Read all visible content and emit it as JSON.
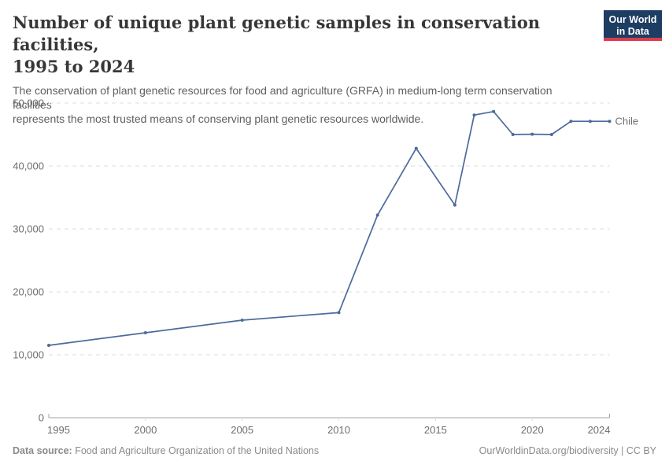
{
  "header": {
    "title": "Number of unique plant genetic samples in conservation facilities, 1995 to 2024",
    "title_lines": [
      "Number of unique plant genetic samples in conservation facilities,",
      "1995 to 2024"
    ],
    "subtitle_lines": [
      "The conservation of plant genetic resources for food and agriculture (GRFA) in medium-long term conservation facilities",
      "represents the most trusted means of conserving plant genetic resources worldwide."
    ],
    "logo": {
      "line1": "Our World",
      "line2": "in Data",
      "bg_color": "#1d3d63",
      "accent_color": "#d93d4d"
    }
  },
  "chart_data": {
    "type": "line",
    "title": "Number of unique plant genetic samples in conservation facilities, 1995 to 2024",
    "x": [
      1995,
      2000,
      2005,
      2010,
      2012,
      2014,
      2016,
      2017,
      2018,
      2019,
      2020,
      2021,
      2022,
      2023,
      2024
    ],
    "series": [
      {
        "name": "Chile",
        "color": "#4C6A9C",
        "values": [
          11500,
          13500,
          15500,
          16700,
          32200,
          42800,
          33800,
          48100,
          48650,
          45000,
          45050,
          45000,
          47100,
          47100,
          47100
        ]
      }
    ],
    "xlim": [
      1995,
      2024
    ],
    "ylim": [
      0,
      50000
    ],
    "x_ticks": {
      "values": [
        1995,
        2000,
        2005,
        2010,
        2015,
        2020,
        2024
      ],
      "labels": [
        "1995",
        "2000",
        "2005",
        "2010",
        "2015",
        "2020",
        "2024"
      ]
    },
    "y_ticks": {
      "values": [
        0,
        10000,
        20000,
        30000,
        40000,
        50000
      ],
      "labels": [
        "0",
        "10,000",
        "20,000",
        "30,000",
        "40,000",
        "50,000"
      ]
    },
    "grid": "horizontal dashed gridlines",
    "legend_position": "label at end of line",
    "colors": {
      "gridline": "#dcdcdc",
      "axis": "#a3a3a3",
      "tick_text": "#6e6e6e"
    }
  },
  "footer": {
    "source_label": "Data source:",
    "source_text": "Food and Agriculture Organization of the United Nations",
    "attribution": "OurWorldinData.org/biodiversity | CC BY"
  }
}
